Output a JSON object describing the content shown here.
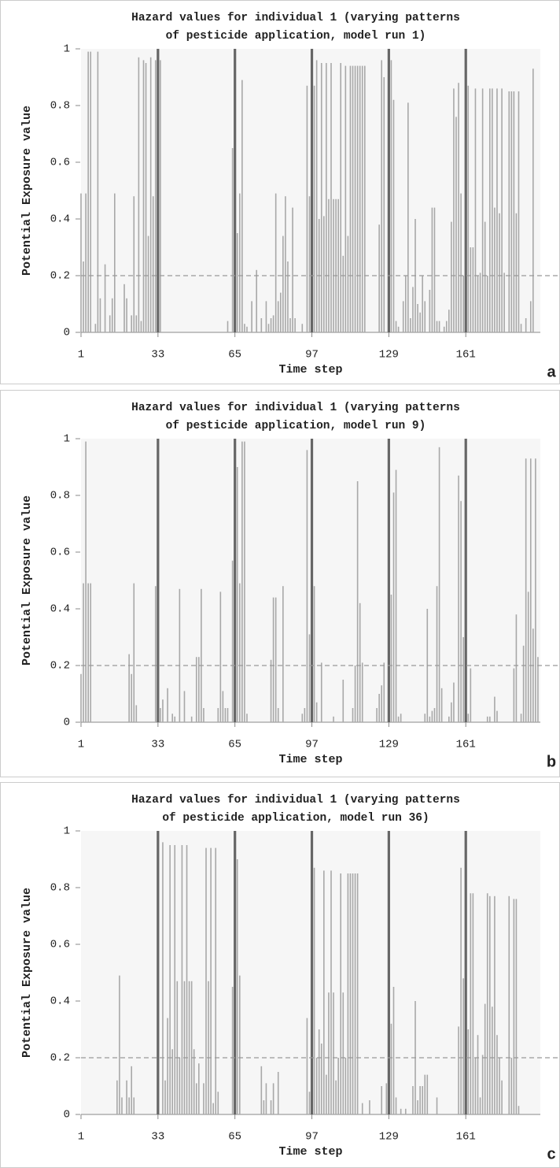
{
  "chart_data": [
    {
      "type": "bar",
      "title": [
        "Hazard values for individual 1 (varying patterns",
        "of pesticide application, model run 1)"
      ],
      "xlabel": "Time step",
      "ylabel": "Potential Exposure value",
      "panel_label": "a",
      "xlim": [
        1,
        192
      ],
      "xticks": [
        1,
        33,
        65,
        97,
        129,
        161
      ],
      "ylim": [
        0,
        1
      ],
      "yticks": [
        0,
        0.2,
        0.4,
        0.6,
        0.8,
        1
      ],
      "reference_line": 0.2,
      "series": [
        {
          "color": "#a8a8a8",
          "x": [
            1,
            2,
            3,
            4,
            5,
            7,
            8,
            9,
            11,
            13,
            14,
            15,
            19,
            20,
            22,
            23,
            24,
            25,
            26,
            27,
            28,
            29,
            30,
            31,
            32,
            34,
            62,
            64,
            66,
            67,
            68,
            69,
            70,
            72,
            74,
            76,
            78,
            79,
            80,
            81,
            82,
            83,
            84,
            85,
            86,
            87,
            88,
            89,
            90,
            93,
            95,
            96,
            98,
            99,
            100,
            101,
            102,
            103,
            104,
            105,
            106,
            107,
            108,
            109,
            110,
            111,
            112,
            113,
            114,
            115,
            116,
            117,
            118,
            119,
            125,
            126,
            127,
            130,
            131,
            132,
            133,
            135,
            136,
            137,
            138,
            139,
            140,
            141,
            142,
            143,
            144,
            146,
            147,
            148,
            149,
            150,
            152,
            153,
            154,
            155,
            156,
            157,
            158,
            159,
            160,
            162,
            163,
            164,
            165,
            166,
            167,
            168,
            169,
            170,
            171,
            172,
            173,
            174,
            175,
            176,
            177,
            179,
            180,
            181,
            182,
            183,
            184,
            186,
            188,
            189
          ],
          "values": [
            0.49,
            0.25,
            0.49,
            0.99,
            0.99,
            0.03,
            0.99,
            0.12,
            0.24,
            0.06,
            0.12,
            0.49,
            0.17,
            0.12,
            0.06,
            0.48,
            0.06,
            0.97,
            0.04,
            0.96,
            0.95,
            0.34,
            0.97,
            0.48,
            0.96,
            0.96,
            0.04,
            0.65,
            0.35,
            0.49,
            0.89,
            0.03,
            0.02,
            0.11,
            0.22,
            0.05,
            0.11,
            0.03,
            0.05,
            0.06,
            0.49,
            0.11,
            0.14,
            0.34,
            0.48,
            0.25,
            0.05,
            0.44,
            0.05,
            0.03,
            0.87,
            0.48,
            0.87,
            0.96,
            0.4,
            0.95,
            0.41,
            0.95,
            0.47,
            0.95,
            0.47,
            0.47,
            0.47,
            0.95,
            0.27,
            0.94,
            0.34,
            0.94,
            0.94,
            0.94,
            0.94,
            0.94,
            0.94,
            0.94,
            0.38,
            0.96,
            0.9,
            0.96,
            0.82,
            0.04,
            0.02,
            0.11,
            0.2,
            0.81,
            0.05,
            0.16,
            0.4,
            0.1,
            0.07,
            0.2,
            0.11,
            0.15,
            0.44,
            0.44,
            0.04,
            0.04,
            0.02,
            0.04,
            0.08,
            0.39,
            0.86,
            0.76,
            0.88,
            0.49,
            0.2,
            0.87,
            0.3,
            0.3,
            0.86,
            0.2,
            0.21,
            0.86,
            0.39,
            0.2,
            0.86,
            0.86,
            0.44,
            0.86,
            0.42,
            0.86,
            0.21,
            0.85,
            0.85,
            0.85,
            0.42,
            0.85,
            0.03,
            0.05,
            0.11,
            0.93
          ]
        },
        {
          "color": "#666666",
          "x": [
            33,
            65,
            97,
            129,
            161
          ],
          "values": [
            1,
            1,
            1,
            1,
            1
          ]
        }
      ]
    },
    {
      "type": "bar",
      "title": [
        "Hazard values for individual 1 (varying patterns",
        "of pesticide application, model run 9)"
      ],
      "xlabel": "Time step",
      "ylabel": "Potential Exposure value",
      "panel_label": "b",
      "xlim": [
        1,
        192
      ],
      "xticks": [
        1,
        33,
        65,
        97,
        129,
        161
      ],
      "ylim": [
        0,
        1
      ],
      "yticks": [
        0,
        0.2,
        0.4,
        0.6,
        0.8,
        1
      ],
      "reference_line": 0.2,
      "series": [
        {
          "color": "#a8a8a8",
          "x": [
            1,
            2,
            3,
            4,
            5,
            21,
            22,
            23,
            24,
            32,
            34,
            35,
            37,
            39,
            40,
            42,
            44,
            47,
            49,
            50,
            51,
            52,
            58,
            59,
            60,
            61,
            62,
            64,
            66,
            67,
            68,
            69,
            70,
            80,
            81,
            82,
            83,
            85,
            93,
            94,
            95,
            96,
            98,
            99,
            101,
            106,
            110,
            114,
            115,
            116,
            117,
            118,
            124,
            125,
            126,
            127,
            130,
            131,
            132,
            133,
            134,
            144,
            145,
            146,
            147,
            148,
            149,
            150,
            151,
            154,
            155,
            156,
            158,
            159,
            160,
            162,
            163,
            170,
            171,
            173,
            174,
            181,
            182,
            184,
            185,
            186,
            187,
            188,
            189,
            190,
            191
          ],
          "values": [
            0.17,
            0.49,
            0.99,
            0.49,
            0.49,
            0.24,
            0.17,
            0.49,
            0.06,
            0.48,
            0.05,
            0.08,
            0.12,
            0.03,
            0.02,
            0.47,
            0.11,
            0.02,
            0.23,
            0.23,
            0.47,
            0.05,
            0.05,
            0.46,
            0.11,
            0.05,
            0.05,
            0.57,
            0.9,
            0.49,
            0.99,
            0.99,
            0.03,
            0.22,
            0.44,
            0.44,
            0.05,
            0.48,
            0.03,
            0.05,
            0.96,
            0.31,
            0.48,
            0.07,
            0.21,
            0.02,
            0.15,
            0.05,
            0.2,
            0.85,
            0.42,
            0.21,
            0.05,
            0.1,
            0.13,
            0.21,
            0.45,
            0.81,
            0.89,
            0.02,
            0.03,
            0.03,
            0.4,
            0.02,
            0.04,
            0.05,
            0.48,
            0.97,
            0.12,
            0.02,
            0.07,
            0.14,
            0.87,
            0.78,
            0.3,
            0.03,
            0.19,
            0.02,
            0.02,
            0.09,
            0.04,
            0.19,
            0.38,
            0.03,
            0.27,
            0.93,
            0.46,
            0.93,
            0.33,
            0.93,
            0.23
          ]
        },
        {
          "color": "#666666",
          "x": [
            33,
            65,
            97,
            129,
            161
          ],
          "values": [
            1,
            1,
            1,
            1,
            1
          ]
        }
      ]
    },
    {
      "type": "bar",
      "title": [
        "Hazard values for individual 1 (varying patterns",
        "of pesticide application, model run 36)"
      ],
      "xlabel": "Time step",
      "ylabel": "Potential Exposure value",
      "panel_label": "c",
      "xlim": [
        1,
        192
      ],
      "xticks": [
        1,
        33,
        65,
        97,
        129,
        161
      ],
      "ylim": [
        0,
        1
      ],
      "yticks": [
        0,
        0.2,
        0.4,
        0.6,
        0.8,
        1
      ],
      "reference_line": 0.2,
      "series": [
        {
          "color": "#a8a8a8",
          "x": [
            16,
            17,
            18,
            20,
            21,
            22,
            23,
            35,
            36,
            37,
            38,
            39,
            40,
            41,
            42,
            43,
            44,
            45,
            46,
            47,
            48,
            49,
            50,
            52,
            53,
            54,
            55,
            56,
            57,
            58,
            64,
            66,
            67,
            76,
            77,
            78,
            80,
            81,
            83,
            95,
            96,
            98,
            99,
            100,
            101,
            102,
            103,
            104,
            105,
            106,
            107,
            108,
            109,
            110,
            111,
            112,
            113,
            114,
            115,
            116,
            118,
            121,
            126,
            128,
            130,
            131,
            132,
            134,
            136,
            139,
            140,
            141,
            142,
            143,
            144,
            145,
            149,
            158,
            159,
            160,
            162,
            163,
            164,
            165,
            166,
            167,
            168,
            169,
            170,
            171,
            172,
            173,
            174,
            175,
            176,
            179,
            180,
            181,
            182,
            183
          ],
          "values": [
            0.12,
            0.49,
            0.06,
            0.12,
            0.06,
            0.17,
            0.06,
            0.96,
            0.12,
            0.34,
            0.95,
            0.23,
            0.95,
            0.47,
            0.2,
            0.95,
            0.47,
            0.95,
            0.47,
            0.47,
            0.23,
            0.11,
            0.18,
            0.11,
            0.94,
            0.47,
            0.94,
            0.04,
            0.94,
            0.08,
            0.45,
            0.9,
            0.49,
            0.17,
            0.05,
            0.11,
            0.05,
            0.11,
            0.15,
            0.34,
            0.08,
            0.87,
            0.2,
            0.3,
            0.25,
            0.86,
            0.14,
            0.43,
            0.86,
            0.43,
            0.12,
            0.2,
            0.85,
            0.43,
            0.2,
            0.85,
            0.85,
            0.85,
            0.85,
            0.85,
            0.04,
            0.05,
            0.1,
            0.11,
            0.32,
            0.45,
            0.06,
            0.02,
            0.02,
            0.1,
            0.4,
            0.05,
            0.1,
            0.1,
            0.14,
            0.14,
            0.06,
            0.31,
            0.87,
            0.48,
            0.3,
            0.78,
            0.78,
            0.2,
            0.28,
            0.06,
            0.21,
            0.39,
            0.78,
            0.77,
            0.38,
            0.77,
            0.28,
            0.2,
            0.12,
            0.77,
            0.2,
            0.76,
            0.76,
            0.03
          ]
        },
        {
          "color": "#666666",
          "x": [
            33,
            65,
            97,
            129,
            161
          ],
          "values": [
            1,
            1,
            1,
            1,
            1
          ]
        }
      ]
    }
  ]
}
